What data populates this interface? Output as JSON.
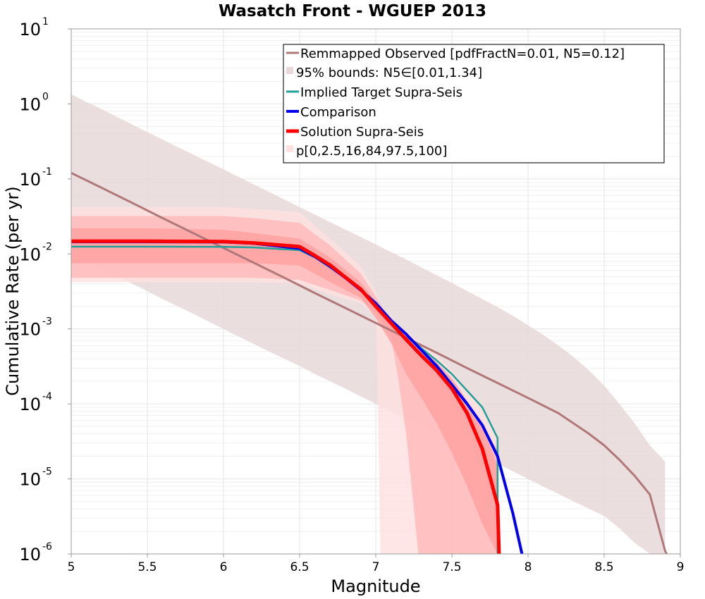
{
  "chart_data": {
    "type": "line",
    "title": "Wasatch Front - WGUEP 2013",
    "xlabel": "Magnitude",
    "ylabel": "Cumulative Rate (per yr)",
    "xlim": [
      5,
      9
    ],
    "ylim": [
      1e-06,
      10
    ],
    "yscale": "log",
    "grid": true,
    "x_ticks": [
      "5",
      "5.5",
      "6",
      "6.5",
      "7",
      "7.5",
      "8",
      "8.5",
      "9"
    ],
    "y_ticks": [
      {
        "base": "10",
        "exp": "1"
      },
      {
        "base": "10",
        "exp": "0"
      },
      {
        "base": "10",
        "exp": "-1"
      },
      {
        "base": "10",
        "exp": "-2"
      },
      {
        "base": "10",
        "exp": "-3"
      },
      {
        "base": "10",
        "exp": "-4"
      },
      {
        "base": "10",
        "exp": "-5"
      },
      {
        "base": "10",
        "exp": "-6"
      }
    ],
    "legend_position": "top-right",
    "legend": [
      "Remmapped Observed [pdfFractN=0.01, N5=0.12]",
      "95% bounds: N5∈[0.01,1.34]",
      "Implied Target Supra-Seis",
      "Comparison",
      "Solution Supra-Seis",
      "p[0,2.5,16,84,97.5,100]"
    ],
    "colors": {
      "observed": "#b07878",
      "observed_band": "#e8d8d8",
      "target": "#20a098",
      "comparison": "#0000ee",
      "solution": "#ff0000",
      "band_outer": "#ffe0e0",
      "band_mid": "#ffb8b8",
      "band_inner": "#ffa0a0",
      "grid": "#e4e4e4"
    },
    "observed_band": {
      "x": [
        5,
        5.1,
        5.2,
        5.3,
        5.4,
        5.5,
        5.6,
        5.7,
        5.8,
        5.9,
        6,
        6.1,
        6.2,
        6.3,
        6.4,
        6.5,
        6.6,
        6.7,
        6.8,
        6.9,
        7,
        7.1,
        7.2,
        7.3,
        7.4,
        7.5,
        7.6,
        7.7,
        7.8,
        7.9,
        8,
        8.1,
        8.2,
        8.3,
        8.4,
        8.5,
        8.6,
        8.7,
        8.8,
        8.9
      ],
      "upper": [
        1.34,
        1.06,
        0.85,
        0.67,
        0.53,
        0.42,
        0.335,
        0.266,
        0.211,
        0.168,
        0.134,
        0.106,
        0.084,
        0.067,
        0.053,
        0.042,
        0.0335,
        0.0266,
        0.0211,
        0.0168,
        0.0134,
        0.0106,
        0.0084,
        0.0066,
        0.0052,
        0.0041,
        0.0032,
        0.0025,
        0.00195,
        0.0015,
        0.00112,
        0.00083,
        0.0006,
        0.00042,
        0.00028,
        0.000175,
        0.0001,
        5.5e-05,
        2.8e-05,
        1.7e-05
      ],
      "lower": [
        0.01,
        0.0079,
        0.0063,
        0.005,
        0.004,
        0.0032,
        0.0025,
        0.002,
        0.0016,
        0.00126,
        0.001,
        0.00079,
        0.00063,
        0.0005,
        0.0004,
        0.00032,
        0.00025,
        0.0002,
        0.00016,
        0.000126,
        0.0001,
        7.9e-05,
        6.3e-05,
        5e-05,
        4e-05,
        3.2e-05,
        2.5e-05,
        2e-05,
        1.6e-05,
        1.26e-05,
        1e-05,
        7.9e-06,
        6.3e-06,
        5e-06,
        4e-06,
        3.2e-06,
        2.2e-06,
        1.4e-06,
        9e-07,
        6e-07
      ]
    },
    "solution_bands": [
      {
        "name": "outer",
        "x": [
          5,
          5.5,
          6,
          6.2,
          6.5,
          6.7,
          6.9,
          7,
          7.01,
          7.02,
          7.03,
          7.04,
          7.1,
          7.2,
          7.3,
          7.4,
          7.5,
          7.6,
          7.7,
          7.8
        ],
        "upper": [
          0.042,
          0.042,
          0.042,
          0.04,
          0.036,
          0.016,
          0.0068,
          0.0032,
          0.0028,
          0.0022,
          0.0016,
          0.0012,
          0.0012,
          0.0009,
          0.00065,
          0.00045,
          0.00028,
          0.00016,
          8e-05,
          3.5e-05
        ],
        "lower": [
          0.0042,
          0.0042,
          0.0042,
          0.0042,
          0.004,
          0.0029,
          0.0022,
          0.0015,
          0.0003,
          2e-05,
          1e-06,
          1e-06,
          1e-06,
          1e-06,
          1e-06,
          1e-06,
          1e-06,
          1e-06,
          1e-06,
          1e-06
        ]
      },
      {
        "name": "middle",
        "x": [
          5,
          5.5,
          6,
          6.2,
          6.5,
          6.7,
          6.9,
          7,
          7.1,
          7.15,
          7.2,
          7.25,
          7.28,
          7.3,
          7.4,
          7.5,
          7.6,
          7.7,
          7.8
        ],
        "upper": [
          0.032,
          0.032,
          0.032,
          0.03,
          0.026,
          0.013,
          0.0055,
          0.0027,
          0.0012,
          0.0009,
          0.0007,
          0.00052,
          0.00045,
          0.0004,
          0.00026,
          0.00016,
          9e-05,
          4.5e-05,
          2.5e-05
        ],
        "lower": [
          0.0048,
          0.0048,
          0.0048,
          0.0048,
          0.0045,
          0.0033,
          0.0024,
          0.0017,
          0.0008,
          0.0002,
          4e-05,
          4e-06,
          1e-06,
          1e-06,
          1e-06,
          1e-06,
          1e-06,
          1e-06,
          1e-06
        ]
      },
      {
        "name": "inner",
        "x": [
          5,
          5.5,
          6,
          6.2,
          6.5,
          6.7,
          6.9,
          7,
          7.1,
          7.2,
          7.3,
          7.4,
          7.5,
          7.6,
          7.7,
          7.8,
          7.81
        ],
        "upper": [
          0.022,
          0.022,
          0.021,
          0.019,
          0.016,
          0.009,
          0.0042,
          0.0023,
          0.0012,
          0.0008,
          0.00055,
          0.00036,
          0.00022,
          0.00011,
          5e-05,
          1.5e-05,
          1e-06
        ],
        "lower": [
          0.0075,
          0.0075,
          0.0075,
          0.0075,
          0.007,
          0.0042,
          0.0026,
          0.0014,
          0.00065,
          0.00025,
          0.00012,
          5.5e-05,
          2.2e-05,
          8e-06,
          2.5e-06,
          1e-06,
          1e-06
        ]
      }
    ],
    "series": [
      {
        "key": "observed",
        "x": [
          5,
          5.2,
          5.4,
          5.6,
          5.8,
          6,
          6.2,
          6.4,
          6.6,
          6.8,
          7,
          7.2,
          7.4,
          7.6,
          7.8,
          8,
          8.2,
          8.4,
          8.5,
          8.6,
          8.7,
          8.8,
          8.9,
          8.91
        ],
        "values": [
          0.12,
          0.076,
          0.048,
          0.03,
          0.019,
          0.012,
          0.0076,
          0.0048,
          0.003,
          0.0019,
          0.0012,
          0.00076,
          0.00048,
          0.0003,
          0.00019,
          0.00012,
          7.5e-05,
          4e-05,
          2.8e-05,
          1.8e-05,
          1.1e-05,
          6.2e-06,
          1.1e-06,
          1e-06
        ]
      },
      {
        "key": "target",
        "x": [
          5,
          5.5,
          6,
          6.2,
          6.5,
          6.6,
          6.7,
          6.8,
          6.9,
          7,
          7.1,
          7.2,
          7.3,
          7.4,
          7.5,
          7.6,
          7.7,
          7.8,
          7.8
        ],
        "values": [
          0.0125,
          0.0125,
          0.0124,
          0.0122,
          0.0112,
          0.009,
          0.0066,
          0.0048,
          0.0033,
          0.0022,
          0.0013,
          0.00085,
          0.00055,
          0.00038,
          0.00025,
          0.00015,
          9e-05,
          3.5e-05,
          1e-06
        ]
      },
      {
        "key": "comparison",
        "x": [
          5,
          5.5,
          6,
          6.2,
          6.5,
          6.6,
          6.7,
          6.8,
          6.9,
          7,
          7.1,
          7.2,
          7.3,
          7.4,
          7.5,
          7.6,
          7.7,
          7.8,
          7.9,
          7.96
        ],
        "values": [
          0.0145,
          0.0145,
          0.0144,
          0.0138,
          0.0118,
          0.0092,
          0.0068,
          0.0048,
          0.0033,
          0.0022,
          0.0013,
          0.00085,
          0.00052,
          0.00032,
          0.00018,
          0.0001,
          5.2e-05,
          2e-05,
          3.5e-06,
          1e-06
        ]
      },
      {
        "key": "solution",
        "x": [
          5,
          5.5,
          6,
          6.2,
          6.5,
          6.6,
          6.7,
          6.8,
          6.9,
          7,
          7.1,
          7.2,
          7.3,
          7.4,
          7.5,
          7.6,
          7.7,
          7.8,
          7.81
        ],
        "values": [
          0.0148,
          0.0148,
          0.0146,
          0.014,
          0.0125,
          0.0095,
          0.0071,
          0.0049,
          0.0034,
          0.002,
          0.0012,
          0.00072,
          0.00044,
          0.00028,
          0.00016,
          7.5e-05,
          2.5e-05,
          4.5e-06,
          1e-06
        ]
      }
    ]
  }
}
